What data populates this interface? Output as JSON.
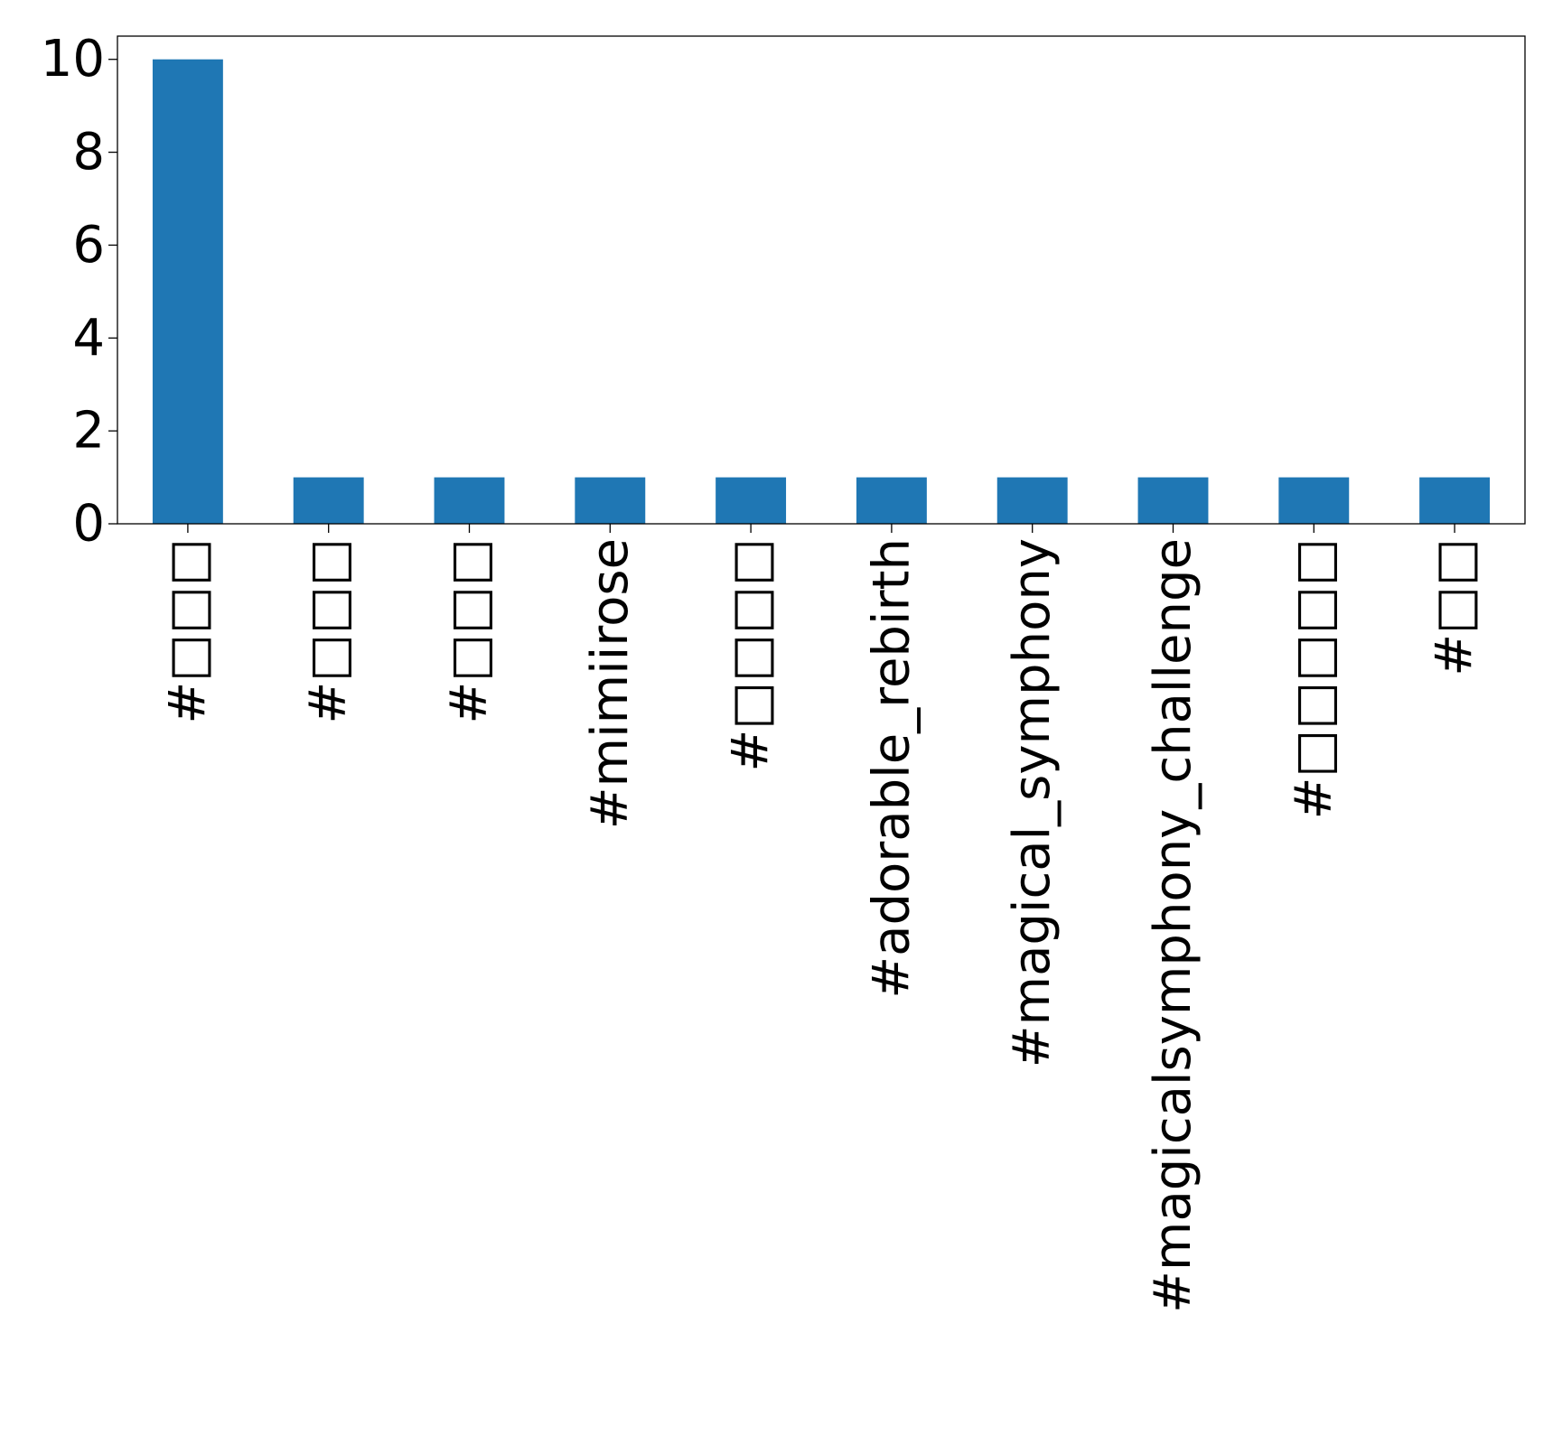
{
  "chart_data": {
    "type": "bar",
    "title": "",
    "xlabel": "",
    "ylabel": "",
    "categories": [
      "#□□□",
      "#□□□",
      "#□□□",
      "#mimiirose",
      "#□□□□",
      "#adorable_rebirth",
      "#magical_symphony",
      "#magicalsymphony_challenge",
      "#□□□□□",
      "#□□"
    ],
    "values": [
      10,
      1,
      1,
      1,
      1,
      1,
      1,
      1,
      1,
      1
    ],
    "ylim": [
      0,
      10.5
    ],
    "yticks": [
      0,
      2,
      4,
      6,
      8,
      10
    ],
    "grid": false,
    "legend": false,
    "bar_color": "#1f77b4",
    "x_tick_rotation": "vertical"
  }
}
